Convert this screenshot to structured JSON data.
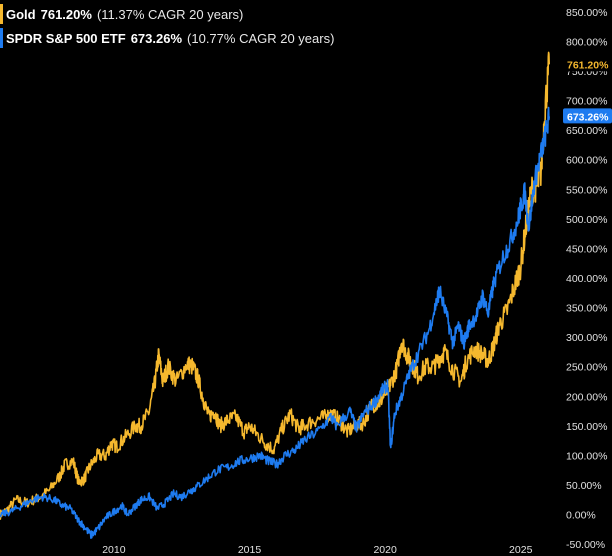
{
  "colors": {
    "background": "#000000",
    "gold": "#F5B82E",
    "spy": "#1E7BF0",
    "text": "#E0E0E0"
  },
  "legend": {
    "gold": {
      "name": "Gold",
      "value": "761.20%",
      "note": "(11.37% CAGR 20 years)"
    },
    "spy": {
      "name": "SPDR S&P 500 ETF",
      "value": "673.26%",
      "note": "(10.77% CAGR 20 years)"
    }
  },
  "chart_data": {
    "type": "line",
    "title": "",
    "xlabel": "",
    "ylabel": "",
    "x_ticks": [
      {
        "year": 2010,
        "label": "2010"
      },
      {
        "year": 2015,
        "label": "2015"
      },
      {
        "year": 2020,
        "label": "2020"
      },
      {
        "year": 2025,
        "label": "2025"
      }
    ],
    "y_ticks": [
      -50,
      0,
      50,
      100,
      150,
      200,
      250,
      300,
      350,
      400,
      450,
      500,
      550,
      600,
      650,
      700,
      750,
      800,
      850
    ],
    "y_tick_labels": [
      "-50.00%",
      "0.00%",
      "50.00%",
      "100.00%",
      "150.00%",
      "200.00%",
      "250.00%",
      "300.00%",
      "350.00%",
      "400.00%",
      "450.00%",
      "500.00%",
      "550.00%",
      "600.00%",
      "650.00%",
      "700.00%",
      "750.00%",
      "800.00%",
      "850.00%"
    ],
    "xlim": [
      2005.8,
      2026.3
    ],
    "ylim": [
      -70,
      870
    ],
    "y_unit": "%",
    "last_value_labels": [
      {
        "series": "Gold",
        "label": "761.20%",
        "value": 761.2
      },
      {
        "series": "SPDR S&P 500 ETF",
        "label": "673.26%",
        "value": 673.26
      }
    ],
    "series": [
      {
        "name": "Gold",
        "color_key": "gold",
        "points": [
          [
            2005.8,
            0
          ],
          [
            2006.0,
            5
          ],
          [
            2006.4,
            25
          ],
          [
            2006.8,
            20
          ],
          [
            2007.2,
            28
          ],
          [
            2007.6,
            40
          ],
          [
            2008.0,
            65
          ],
          [
            2008.2,
            85
          ],
          [
            2008.5,
            90
          ],
          [
            2008.7,
            55
          ],
          [
            2008.9,
            60
          ],
          [
            2009.1,
            80
          ],
          [
            2009.4,
            100
          ],
          [
            2009.7,
            100
          ],
          [
            2009.9,
            120
          ],
          [
            2010.1,
            115
          ],
          [
            2010.4,
            130
          ],
          [
            2010.8,
            150
          ],
          [
            2011.0,
            150
          ],
          [
            2011.3,
            175
          ],
          [
            2011.5,
            220
          ],
          [
            2011.65,
            270
          ],
          [
            2011.8,
            225
          ],
          [
            2012.0,
            250
          ],
          [
            2012.3,
            225
          ],
          [
            2012.7,
            255
          ],
          [
            2012.9,
            250
          ],
          [
            2013.1,
            230
          ],
          [
            2013.3,
            195
          ],
          [
            2013.5,
            165
          ],
          [
            2013.7,
            175
          ],
          [
            2013.9,
            150
          ],
          [
            2014.2,
            160
          ],
          [
            2014.5,
            165
          ],
          [
            2014.8,
            140
          ],
          [
            2015.0,
            150
          ],
          [
            2015.3,
            135
          ],
          [
            2015.6,
            120
          ],
          [
            2015.9,
            110
          ],
          [
            2016.2,
            145
          ],
          [
            2016.5,
            170
          ],
          [
            2016.8,
            145
          ],
          [
            2017.0,
            150
          ],
          [
            2017.4,
            160
          ],
          [
            2017.8,
            165
          ],
          [
            2018.0,
            170
          ],
          [
            2018.3,
            160
          ],
          [
            2018.6,
            140
          ],
          [
            2018.9,
            150
          ],
          [
            2019.2,
            155
          ],
          [
            2019.5,
            185
          ],
          [
            2019.8,
            190
          ],
          [
            2020.0,
            205
          ],
          [
            2020.2,
            220
          ],
          [
            2020.45,
            250
          ],
          [
            2020.6,
            295
          ],
          [
            2020.8,
            270
          ],
          [
            2021.0,
            255
          ],
          [
            2021.2,
            235
          ],
          [
            2021.5,
            250
          ],
          [
            2021.8,
            250
          ],
          [
            2022.0,
            265
          ],
          [
            2022.2,
            275
          ],
          [
            2022.5,
            245
          ],
          [
            2022.8,
            225
          ],
          [
            2023.0,
            260
          ],
          [
            2023.3,
            280
          ],
          [
            2023.6,
            270
          ],
          [
            2023.8,
            260
          ],
          [
            2024.0,
            285
          ],
          [
            2024.2,
            320
          ],
          [
            2024.5,
            345
          ],
          [
            2024.8,
            390
          ],
          [
            2025.0,
            420
          ],
          [
            2025.2,
            490
          ],
          [
            2025.4,
            550
          ],
          [
            2025.6,
            555
          ],
          [
            2025.75,
            580
          ],
          [
            2025.9,
            690
          ],
          [
            2026.05,
            761.2
          ]
        ]
      },
      {
        "name": "SPDR S&P 500 ETF",
        "color_key": "spy",
        "points": [
          [
            2005.8,
            0
          ],
          [
            2006.2,
            5
          ],
          [
            2006.6,
            15
          ],
          [
            2007.0,
            25
          ],
          [
            2007.4,
            30
          ],
          [
            2007.8,
            25
          ],
          [
            2008.1,
            15
          ],
          [
            2008.4,
            10
          ],
          [
            2008.7,
            -10
          ],
          [
            2008.9,
            -20
          ],
          [
            2009.15,
            -35
          ],
          [
            2009.4,
            -25
          ],
          [
            2009.7,
            -5
          ],
          [
            2010.0,
            5
          ],
          [
            2010.3,
            15
          ],
          [
            2010.5,
            0
          ],
          [
            2010.8,
            15
          ],
          [
            2011.0,
            25
          ],
          [
            2011.3,
            30
          ],
          [
            2011.6,
            10
          ],
          [
            2011.9,
            20
          ],
          [
            2012.2,
            35
          ],
          [
            2012.5,
            30
          ],
          [
            2012.8,
            40
          ],
          [
            2013.0,
            45
          ],
          [
            2013.4,
            60
          ],
          [
            2013.8,
            75
          ],
          [
            2014.2,
            80
          ],
          [
            2014.6,
            90
          ],
          [
            2015.0,
            95
          ],
          [
            2015.4,
            100
          ],
          [
            2015.7,
            90
          ],
          [
            2016.0,
            85
          ],
          [
            2016.3,
            100
          ],
          [
            2016.7,
            110
          ],
          [
            2017.0,
            125
          ],
          [
            2017.5,
            140
          ],
          [
            2018.0,
            165
          ],
          [
            2018.2,
            150
          ],
          [
            2018.7,
            175
          ],
          [
            2018.95,
            145
          ],
          [
            2019.2,
            170
          ],
          [
            2019.6,
            190
          ],
          [
            2019.9,
            210
          ],
          [
            2020.1,
            220
          ],
          [
            2020.2,
            110
          ],
          [
            2020.35,
            170
          ],
          [
            2020.6,
            200
          ],
          [
            2020.9,
            240
          ],
          [
            2021.2,
            270
          ],
          [
            2021.6,
            310
          ],
          [
            2021.9,
            360
          ],
          [
            2022.0,
            380
          ],
          [
            2022.3,
            330
          ],
          [
            2022.5,
            290
          ],
          [
            2022.7,
            320
          ],
          [
            2022.9,
            290
          ],
          [
            2023.1,
            320
          ],
          [
            2023.4,
            340
          ],
          [
            2023.6,
            370
          ],
          [
            2023.8,
            340
          ],
          [
            2024.0,
            390
          ],
          [
            2024.3,
            430
          ],
          [
            2024.6,
            460
          ],
          [
            2024.9,
            500
          ],
          [
            2025.0,
            520
          ],
          [
            2025.15,
            545
          ],
          [
            2025.3,
            485
          ],
          [
            2025.5,
            560
          ],
          [
            2025.7,
            600
          ],
          [
            2025.9,
            640
          ],
          [
            2026.05,
            673.26
          ]
        ]
      }
    ]
  }
}
